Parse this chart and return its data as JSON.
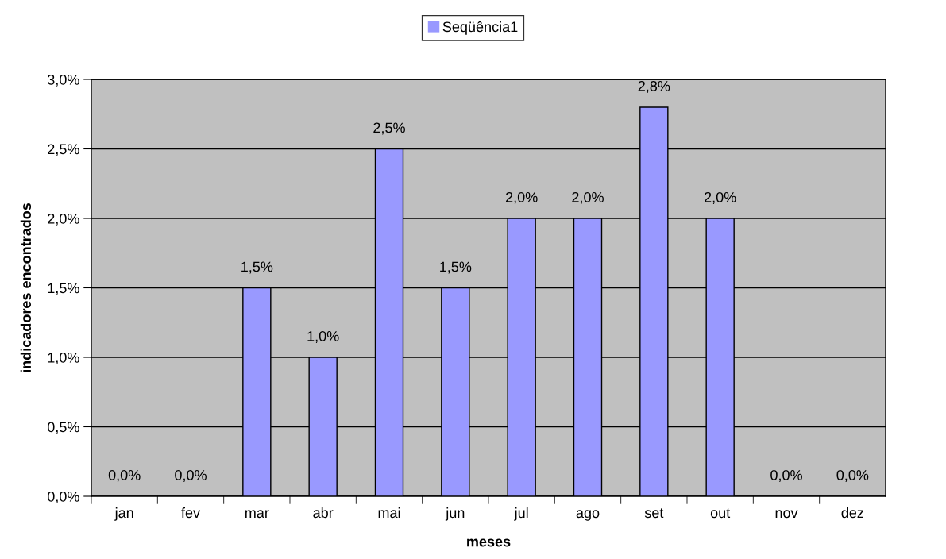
{
  "chart_data": {
    "type": "bar",
    "xlabel": "meses",
    "ylabel": "indicadores encontrados",
    "categories": [
      "jan",
      "fev",
      "mar",
      "abr",
      "mai",
      "jun",
      "jul",
      "ago",
      "set",
      "out",
      "nov",
      "dez"
    ],
    "series": [
      {
        "name": "Seqüência1",
        "color": "#9999ff",
        "values": [
          0.0,
          0.0,
          1.5,
          1.0,
          2.5,
          1.5,
          2.0,
          2.0,
          2.8,
          2.0,
          0.0,
          0.0
        ],
        "value_labels": [
          "0,0%",
          "0,0%",
          "1,5%",
          "1,0%",
          "2,5%",
          "1,5%",
          "2,0%",
          "2,0%",
          "2,8%",
          "2,0%",
          "0,0%",
          "0,0%"
        ]
      }
    ],
    "ylim": [
      0,
      3
    ],
    "yticks": [
      {
        "value": 0,
        "label": "0,0%"
      },
      {
        "value": 0.5,
        "label": "0,5%"
      },
      {
        "value": 1,
        "label": "1,0%"
      },
      {
        "value": 1.5,
        "label": "1,5%"
      },
      {
        "value": 2,
        "label": "2,0%"
      },
      {
        "value": 2.5,
        "label": "2,5%"
      },
      {
        "value": 3,
        "label": "3,0%"
      }
    ],
    "grid": "y",
    "legend": "top"
  }
}
